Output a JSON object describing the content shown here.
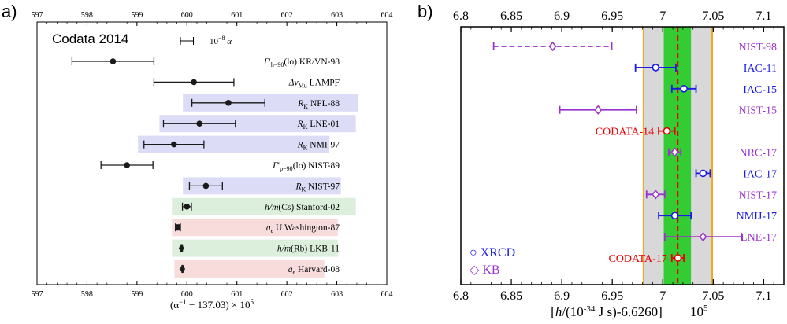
{
  "chart_data": [
    {
      "panel_label": "a)",
      "type": "scatter",
      "title": "Codata 2014",
      "xlabel_parts": {
        "pre": "(α",
        "sup": "−1",
        "post": " − 137.03) × 10",
        "sup2": "5"
      },
      "xlim": [
        597,
        604
      ],
      "xticks": [
        597,
        598,
        599,
        600,
        601,
        602,
        603,
        604
      ],
      "scale_bar": {
        "label_pre": "10",
        "label_sup": "−8",
        "label_post": " α",
        "x0": 599.87,
        "x1": 600.13
      },
      "bands": {
        "blue": "#dcdcf7",
        "green": "#dcefdc",
        "red": "#f8dcdc"
      },
      "marker_color": "#1a1a1a",
      "rows": [
        {
          "parts": [
            [
              "Γ",
              "i"
            ],
            [
              "′",
              ""
            ],
            [
              "h−90",
              "sub"
            ],
            [
              "(lo) KR/VN-98",
              ""
            ]
          ],
          "value": 598.52,
          "err": 0.82,
          "band": null,
          "band_range": null,
          "marker": "circle"
        },
        {
          "parts": [
            [
              "Δν",
              "i"
            ],
            [
              "Mu",
              "sub"
            ],
            [
              " LAMPF",
              ""
            ]
          ],
          "value": 600.14,
          "err": 0.8,
          "band": null,
          "band_range": null,
          "marker": "circle"
        },
        {
          "parts": [
            [
              "R",
              "i"
            ],
            [
              "K",
              "sub"
            ],
            [
              " NPL-88",
              ""
            ]
          ],
          "value": 600.83,
          "err": 0.73,
          "band": "blue",
          "band_range": [
            599.92,
            603.43
          ],
          "marker": "circle"
        },
        {
          "parts": [
            [
              "R",
              "i"
            ],
            [
              "K",
              "sub"
            ],
            [
              " LNE-01",
              ""
            ]
          ],
          "value": 600.25,
          "err": 0.72,
          "band": "blue",
          "band_range": [
            599.45,
            603.38
          ],
          "marker": "circle"
        },
        {
          "parts": [
            [
              "R",
              "i"
            ],
            [
              "K",
              "sub"
            ],
            [
              " NMI-97",
              ""
            ]
          ],
          "value": 599.74,
          "err": 0.6,
          "band": "blue",
          "band_range": [
            599.02,
            602.85
          ],
          "marker": "circle"
        },
        {
          "parts": [
            [
              "Γ",
              "i"
            ],
            [
              "′",
              ""
            ],
            [
              "p−90",
              "sub"
            ],
            [
              "(lo) NIST-89",
              ""
            ]
          ],
          "value": 598.8,
          "err": 0.52,
          "band": null,
          "band_range": null,
          "marker": "circle"
        },
        {
          "parts": [
            [
              "R",
              "i"
            ],
            [
              "K",
              "sub"
            ],
            [
              " NIST-97",
              ""
            ]
          ],
          "value": 600.38,
          "err": 0.33,
          "band": "blue",
          "band_range": [
            599.92,
            603.08
          ],
          "marker": "circle"
        },
        {
          "parts": [
            [
              "h/m",
              "i"
            ],
            [
              "(Cs) Stanford-02",
              ""
            ]
          ],
          "value": 600.0,
          "err": 0.09,
          "band": "green",
          "band_range": [
            599.7,
            603.38
          ],
          "marker": "circle"
        },
        {
          "parts": [
            [
              "a",
              "i"
            ],
            [
              "e",
              "sub"
            ],
            [
              " U Washington-87",
              ""
            ]
          ],
          "value": 599.82,
          "err": 0.05,
          "band": "red",
          "band_range": [
            599.7,
            603.02
          ],
          "marker": "square"
        },
        {
          "parts": [
            [
              "h/m",
              "i"
            ],
            [
              "(Rb) LKB-11",
              ""
            ]
          ],
          "value": 599.89,
          "err": 0.02,
          "band": "green",
          "band_range": [
            599.7,
            603.02
          ],
          "marker": "diamond"
        },
        {
          "parts": [
            [
              "a",
              "i"
            ],
            [
              "e",
              "sub"
            ],
            [
              " Harvard-08",
              ""
            ]
          ],
          "value": 599.91,
          "err": 0.01,
          "band": "red",
          "band_range": [
            599.75,
            602.75
          ],
          "marker": "diamond"
        }
      ]
    },
    {
      "panel_label": "b)",
      "type": "scatter",
      "xlabel": "[h/(10",
      "xlabel_parts": {
        "pre": "[",
        "h": "h",
        "mid": "/(10",
        "sup": "-34",
        "post": " J s)-6.6260]",
        "tail": "10",
        "tail_sup": "5"
      },
      "xlim": [
        6.8,
        7.12
      ],
      "xticks": [
        "6.8",
        "6.85",
        "6.9",
        "6.95",
        "7",
        "7.05",
        "7.1"
      ],
      "xtick_values": [
        6.8,
        6.85,
        6.9,
        6.95,
        7.0,
        7.05,
        7.1
      ],
      "gray_band": [
        6.981,
        7.049
      ],
      "green_band": [
        7.001,
        7.028
      ],
      "dashed_line": 7.015,
      "colors": {
        "blue": "#1a1ae6",
        "purple": "#9a32cd",
        "red": "#e60000",
        "gray": "#d8d8d8",
        "green": "#33cc33",
        "orange": "#f5a623"
      },
      "legend": [
        {
          "symbol": "○",
          "label": "XRCD",
          "color": "#1a1ae6"
        },
        {
          "symbol": "◇",
          "label": "KB",
          "color": "#9a32cd"
        }
      ],
      "points": [
        {
          "label": "NIST-98",
          "value": 6.891,
          "err": 0.0585,
          "color": "purple",
          "marker": "diamond",
          "dashed": true,
          "label_side": "right"
        },
        {
          "label": "IAC-11",
          "value": 6.993,
          "err": 0.02,
          "color": "blue",
          "marker": "circle",
          "dashed": false,
          "label_side": "right"
        },
        {
          "label": "IAC-15",
          "value": 7.021,
          "err": 0.012,
          "color": "blue",
          "marker": "circle",
          "dashed": false,
          "label_side": "right"
        },
        {
          "label": "NIST-15",
          "value": 6.936,
          "err": 0.038,
          "color": "purple",
          "marker": "diamond",
          "dashed": false,
          "label_side": "right"
        },
        {
          "label": "CODATA-14",
          "value": 7.004,
          "err": 0.008,
          "color": "red",
          "marker": "circle",
          "dashed": false,
          "label_side": "left"
        },
        {
          "label": "NRC-17",
          "value": 7.012,
          "err": 0.006,
          "color": "purple",
          "marker": "diamond",
          "dashed": false,
          "label_side": "right"
        },
        {
          "label": "IAC-17",
          "value": 7.04,
          "err": 0.007,
          "color": "blue",
          "marker": "circle",
          "dashed": false,
          "label_side": "right"
        },
        {
          "label": "NIST-17",
          "value": 6.993,
          "err": 0.009,
          "color": "purple",
          "marker": "diamond",
          "dashed": false,
          "label_side": "right"
        },
        {
          "label": "NMIJ-17",
          "value": 7.012,
          "err": 0.016,
          "color": "blue",
          "marker": "circle",
          "dashed": false,
          "label_side": "right"
        },
        {
          "label": "LNE-17",
          "value": 7.04,
          "err": 0.038,
          "color": "purple",
          "marker": "diamond",
          "dashed": false,
          "label_side": "right"
        },
        {
          "label": "CODATA-17",
          "value": 7.015,
          "err": 0.006,
          "color": "red",
          "marker": "circle",
          "dashed": false,
          "label_side": "left"
        }
      ]
    }
  ]
}
